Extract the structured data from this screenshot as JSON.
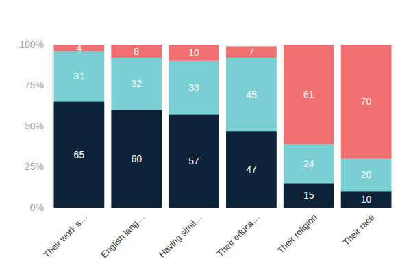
{
  "chart_data": {
    "type": "bar",
    "stacked": true,
    "data_labels": true,
    "grid": false,
    "categories": [
      "Their work s…",
      "English lang…",
      "Having simil…",
      "Their educa…",
      "Their religion",
      "Their race"
    ],
    "series": [
      {
        "color": "#0c2237",
        "values": [
          65,
          60,
          57,
          47,
          15,
          10
        ]
      },
      {
        "color": "#79cfd1",
        "values": [
          31,
          32,
          33,
          45,
          24,
          20
        ]
      },
      {
        "color": "#f07072",
        "values": [
          4,
          8,
          10,
          7,
          61,
          70
        ]
      }
    ],
    "ylim": [
      0,
      100
    ],
    "yticks": [
      {
        "value": 0,
        "label": "0%"
      },
      {
        "value": 25,
        "label": "25%"
      },
      {
        "value": 50,
        "label": "50%"
      },
      {
        "value": 75,
        "label": "75%"
      },
      {
        "value": 100,
        "label": "100%"
      }
    ]
  }
}
